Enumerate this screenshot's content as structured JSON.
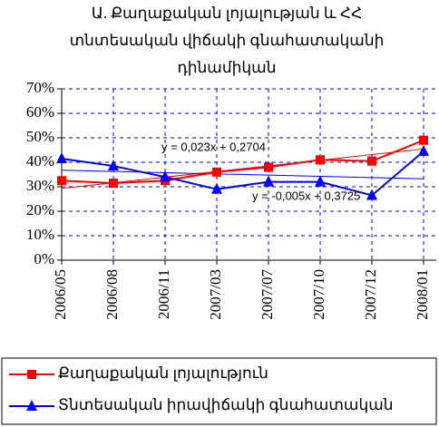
{
  "chart_data": {
    "type": "line",
    "title": [
      "Ա. Քաղաքական լոյալության և ՀՀ",
      "տնտեսական վիճակի գնահատականի",
      "դինամիկան"
    ],
    "categories": [
      "2006/05",
      "2006/08",
      "2006/11",
      "2007/03",
      "2007/07",
      "2007/10",
      "2007/12",
      "2008/01"
    ],
    "series": [
      {
        "name": "Քաղաքական լոյալություն",
        "color": "#ff0000",
        "marker": "square",
        "values": [
          32.5,
          31.5,
          32.5,
          36,
          38,
          41,
          40.5,
          49
        ]
      },
      {
        "name": "Տնտեսական իրավիճակի գնահատական",
        "color": "#0000ff",
        "marker": "triangle",
        "values": [
          41.5,
          38.5,
          34,
          29,
          32,
          32,
          26.5,
          44.5
        ]
      }
    ],
    "trendlines": [
      {
        "label": "y = 0,023x + 0,2704",
        "color": "#ff0000",
        "values": [
          29.34,
          31.64,
          33.94,
          36.24,
          38.54,
          40.84,
          43.14,
          45.44
        ]
      },
      {
        "label": "y = -0,005x + 0,3725",
        "color": "#0000ff",
        "values": [
          36.75,
          36.25,
          35.75,
          35.25,
          34.75,
          34.25,
          33.75,
          33.25
        ]
      }
    ],
    "ylim": [
      0,
      70
    ],
    "yticks": [
      {
        "value": 0,
        "label": "0%"
      },
      {
        "value": 10,
        "label": "10%"
      },
      {
        "value": 20,
        "label": "20%"
      },
      {
        "value": 30,
        "label": "30%"
      },
      {
        "value": 40,
        "label": "40%"
      },
      {
        "value": 50,
        "label": "50%"
      },
      {
        "value": 60,
        "label": "60%"
      },
      {
        "value": 70,
        "label": "70%"
      }
    ],
    "grid": true,
    "legend": "bottom"
  }
}
